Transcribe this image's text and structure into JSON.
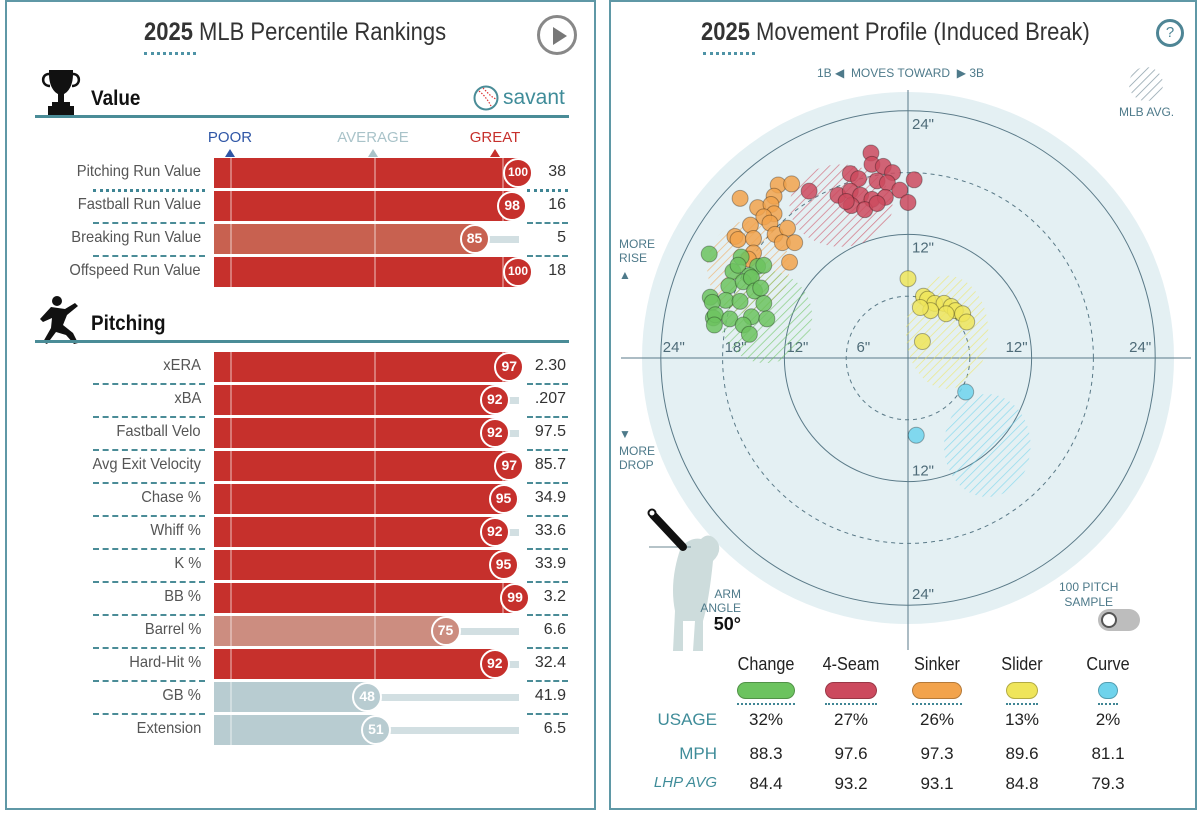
{
  "percentile": {
    "title_year": "2025",
    "title_rest": " MLB Percentile Rankings",
    "play_icon": "play-button-icon",
    "scale": {
      "poor": "POOR",
      "average": "AVERAGE",
      "great": "GREAT"
    },
    "colors": {
      "poor": "#2f56a6",
      "average": "#a9c3c9",
      "great": "#c6302c"
    },
    "brand": "savant",
    "sections": [
      {
        "title": "Value",
        "icon": "trophy-icon",
        "rows": [
          {
            "label": "Pitching Run Value",
            "percentile": 100,
            "value": "38"
          },
          {
            "label": "Fastball Run Value",
            "percentile": 98,
            "value": "16"
          },
          {
            "label": "Breaking Run Value",
            "percentile": 85,
            "value": "5"
          },
          {
            "label": "Offspeed Run Value",
            "percentile": 100,
            "value": "18"
          }
        ]
      },
      {
        "title": "Pitching",
        "icon": "pitcher-icon",
        "rows": [
          {
            "label": "xERA",
            "percentile": 97,
            "value": "2.30"
          },
          {
            "label": "xBA",
            "percentile": 92,
            "value": ".207"
          },
          {
            "label": "Fastball Velo",
            "percentile": 92,
            "value": "97.5"
          },
          {
            "label": "Avg Exit Velocity",
            "percentile": 97,
            "value": "85.7"
          },
          {
            "label": "Chase %",
            "percentile": 95,
            "value": "34.9"
          },
          {
            "label": "Whiff %",
            "percentile": 92,
            "value": "33.6"
          },
          {
            "label": "K %",
            "percentile": 95,
            "value": "33.9"
          },
          {
            "label": "BB %",
            "percentile": 99,
            "value": "3.2"
          },
          {
            "label": "Barrel %",
            "percentile": 75,
            "value": "6.6"
          },
          {
            "label": "Hard-Hit %",
            "percentile": 92,
            "value": "32.4"
          },
          {
            "label": "GB %",
            "percentile": 48,
            "value": "41.9"
          },
          {
            "label": "Extension",
            "percentile": 51,
            "value": "6.5"
          }
        ]
      }
    ]
  },
  "movement": {
    "title_year": "2025",
    "title_rest": " Movement Profile (Induced Break)",
    "help_icon": "question-mark-icon",
    "direction": {
      "left": "1B",
      "middle": "MOVES TOWARD",
      "right": "3B"
    },
    "mlb_avg_label": "MLB AVG.",
    "more_rise": [
      "MORE",
      "RISE"
    ],
    "more_drop": [
      "MORE",
      "DROP"
    ],
    "arm_angle_label": [
      "ARM",
      "ANGLE"
    ],
    "arm_angle_value": "50°",
    "sample_toggle": {
      "label": [
        "100 PITCH",
        "SAMPLE"
      ],
      "on": false
    },
    "row_headers": {
      "usage": "USAGE",
      "mph": "MPH",
      "lhp_avg": "LHP AVG"
    },
    "pitches": [
      {
        "name": "Change",
        "color": "#6cc35f",
        "usage": "32%",
        "mph": "88.3",
        "lhp_avg": "84.4"
      },
      {
        "name": "4-Seam",
        "color": "#cc4a5e",
        "usage": "27%",
        "mph": "97.6",
        "lhp_avg": "93.2"
      },
      {
        "name": "Sinker",
        "color": "#f2a34c",
        "usage": "26%",
        "mph": "97.3",
        "lhp_avg": "93.1"
      },
      {
        "name": "Slider",
        "color": "#efe55a",
        "usage": "13%",
        "mph": "89.6",
        "lhp_avg": "84.8"
      },
      {
        "name": "Curve",
        "color": "#6fd3ec",
        "usage": "2%",
        "mph": "81.1",
        "lhp_avg": "79.3"
      }
    ]
  },
  "chart_data": {
    "type": "scatter",
    "title": "2025 Movement Profile (Induced Break)",
    "xlabel": "1B ◀ MOVES TOWARD ▶ 3B",
    "ylabel": "MORE RISE / MORE DROP",
    "units": "inches",
    "polar_rings": [
      6,
      12,
      18,
      24
    ],
    "ring_labels": [
      "24\"",
      "18\"",
      "12\"",
      "6\"",
      "12\"",
      "24\"",
      "24\"",
      "12\"",
      "12\"",
      "24\""
    ],
    "xlim": [
      -24,
      24
    ],
    "ylim": [
      -24,
      24
    ],
    "series": [
      {
        "name": "4-Seam",
        "color": "#cc4a5e",
        "mlb_avg": {
          "x": -6.5,
          "y": 14.8,
          "rx": 5,
          "ry": 4
        },
        "points": [
          [
            -3.6,
            19.9
          ],
          [
            -3.5,
            18.8
          ],
          [
            -2.4,
            18.6
          ],
          [
            -1.5,
            18.0
          ],
          [
            -5.6,
            17.9
          ],
          [
            -4.8,
            17.4
          ],
          [
            -3.0,
            17.2
          ],
          [
            -2.0,
            17.0
          ],
          [
            -0.8,
            16.3
          ],
          [
            0.6,
            17.3
          ],
          [
            -6.8,
            15.8
          ],
          [
            -5.6,
            16.2
          ],
          [
            -4.6,
            15.8
          ],
          [
            -3.5,
            15.4
          ],
          [
            -2.2,
            15.6
          ],
          [
            -5.5,
            14.8
          ],
          [
            -4.2,
            14.4
          ],
          [
            -3.0,
            15.0
          ],
          [
            -9.6,
            16.2
          ],
          [
            0.0,
            15.1
          ],
          [
            -6.0,
            15.2
          ]
        ]
      },
      {
        "name": "Sinker",
        "color": "#f2a34c",
        "mlb_avg": {
          "x": -15.5,
          "y": 8.8,
          "rx": 4,
          "ry": 4.5
        },
        "points": [
          [
            -12.6,
            16.8
          ],
          [
            -11.3,
            16.9
          ],
          [
            -16.3,
            15.5
          ],
          [
            -13.0,
            15.7
          ],
          [
            -14.6,
            14.6
          ],
          [
            -13.3,
            14.9
          ],
          [
            -13.0,
            14.0
          ],
          [
            -14.0,
            13.7
          ],
          [
            -13.4,
            13.1
          ],
          [
            -15.3,
            12.9
          ],
          [
            -12.9,
            12.0
          ],
          [
            -11.7,
            12.6
          ],
          [
            -16.8,
            11.8
          ],
          [
            -16.5,
            11.5
          ],
          [
            -15.0,
            11.6
          ],
          [
            -12.2,
            11.2
          ],
          [
            -11.0,
            11.2
          ],
          [
            -15.0,
            10.2
          ],
          [
            -15.5,
            9.6
          ],
          [
            -11.5,
            9.3
          ]
        ]
      },
      {
        "name": "Change",
        "color": "#6cc35f",
        "mlb_avg": {
          "x": -13.8,
          "y": 4.0,
          "rx": 4.5,
          "ry": 4.5
        },
        "points": [
          [
            -19.3,
            10.1
          ],
          [
            -16.2,
            9.8
          ],
          [
            -17.0,
            8.4
          ],
          [
            -16.5,
            9.0
          ],
          [
            -14.6,
            8.9
          ],
          [
            -14.0,
            9.0
          ],
          [
            -15.4,
            8.0
          ],
          [
            -17.4,
            7.0
          ],
          [
            -16.0,
            7.4
          ],
          [
            -15.2,
            7.8
          ],
          [
            -14.9,
            6.5
          ],
          [
            -17.7,
            5.6
          ],
          [
            -19.2,
            5.9
          ],
          [
            -19.0,
            5.4
          ],
          [
            -16.3,
            5.5
          ],
          [
            -14.0,
            5.3
          ],
          [
            -18.9,
            3.9
          ],
          [
            -18.7,
            4.2
          ],
          [
            -17.3,
            3.8
          ],
          [
            -15.2,
            4.0
          ],
          [
            -13.7,
            3.8
          ],
          [
            -16.0,
            3.2
          ],
          [
            -15.4,
            2.3
          ],
          [
            -18.8,
            3.2
          ],
          [
            -14.3,
            6.8
          ]
        ]
      },
      {
        "name": "Slider",
        "color": "#efe55a",
        "mlb_avg": {
          "x": 3.8,
          "y": 2.5,
          "rx": 4,
          "ry": 5.5
        },
        "points": [
          [
            0,
            7.7
          ],
          [
            1.5,
            6.0
          ],
          [
            1.9,
            5.7
          ],
          [
            2.6,
            5.3
          ],
          [
            3.5,
            5.3
          ],
          [
            4.2,
            5.0
          ],
          [
            4.6,
            4.6
          ],
          [
            5.3,
            4.3
          ],
          [
            5.7,
            3.5
          ],
          [
            3.7,
            4.3
          ],
          [
            2.2,
            4.6
          ],
          [
            1.2,
            4.9
          ],
          [
            1.4,
            1.6
          ]
        ]
      },
      {
        "name": "Curve",
        "color": "#6fd3ec",
        "mlb_avg": {
          "x": 7.7,
          "y": -8.5,
          "rx": 4.2,
          "ry": 5
        },
        "points": [
          [
            5.6,
            -3.3
          ],
          [
            0.8,
            -7.5
          ]
        ]
      }
    ]
  }
}
